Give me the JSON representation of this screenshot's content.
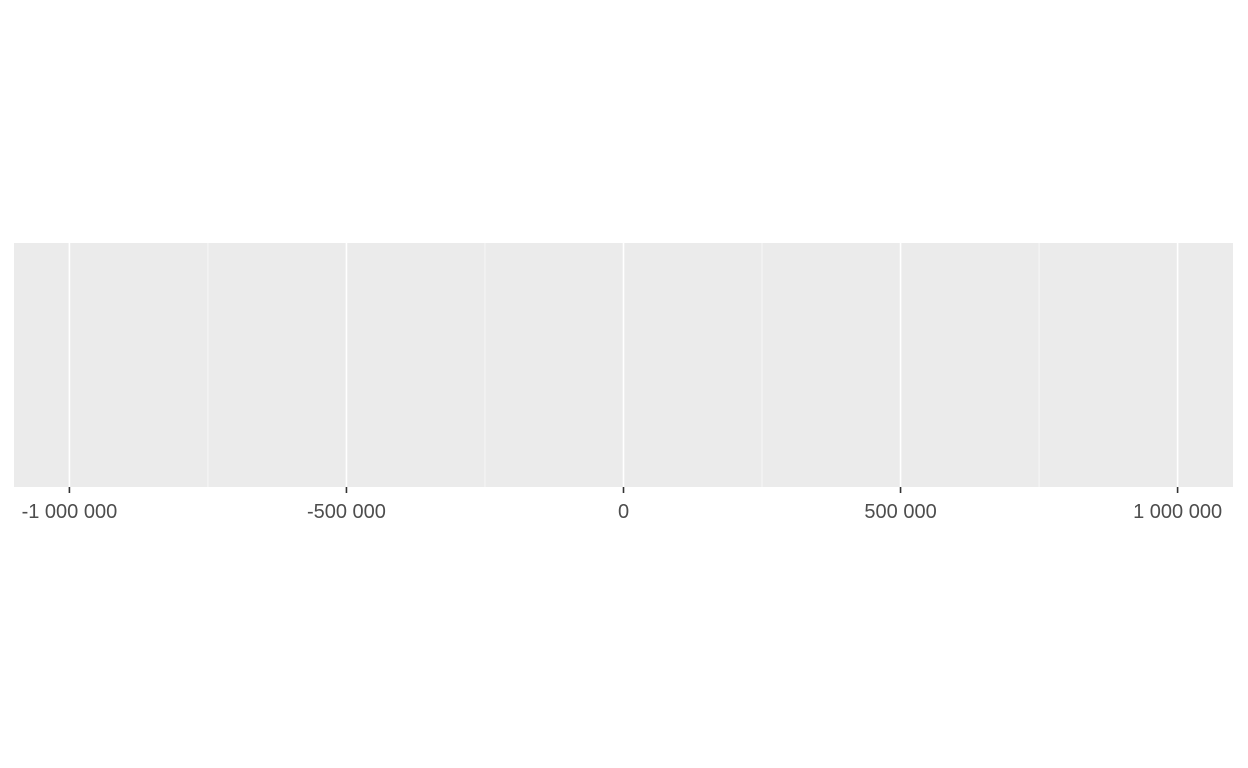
{
  "chart_data": {
    "type": "scatter",
    "title": "",
    "xlabel": "",
    "ylabel": "",
    "xlim": [
      -1100000,
      1100000
    ],
    "x_ticks": [
      -1000000,
      -500000,
      0,
      500000,
      1000000
    ],
    "x_tick_labels": [
      "-1 000 000",
      "-500 000",
      "0",
      "500 000",
      "1 000 000"
    ],
    "x_minor_ticks": [
      -750000,
      -250000,
      250000,
      750000
    ],
    "series": [],
    "grid": true,
    "legend": "none"
  },
  "colors": {
    "panel_background": "#EBEBEB",
    "grid_major": "#FFFFFF",
    "grid_minor": "#F7F7F7",
    "tick_mark": "#333333",
    "tick_label": "#4D4D4D",
    "page_background": "#FFFFFF"
  }
}
